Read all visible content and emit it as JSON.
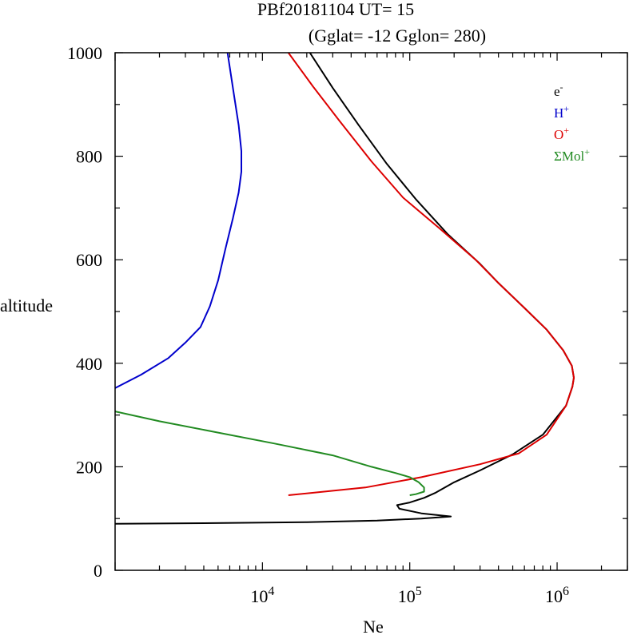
{
  "title_line1": "PBf20181104   UT=  15",
  "title_line2": "(Gglat= -12   Gglon=  280)",
  "chart_data": {
    "type": "line",
    "xlabel": "Ne",
    "ylabel": "altitude",
    "xscale": "log",
    "xlim": [
      1000,
      3000000
    ],
    "ylim": [
      0,
      1000
    ],
    "x_ticks": [
      {
        "value": 10000,
        "base": "10",
        "exp": "4"
      },
      {
        "value": 100000,
        "base": "10",
        "exp": "5"
      },
      {
        "value": 1000000,
        "base": "10",
        "exp": "6"
      }
    ],
    "y_ticks": [
      0,
      200,
      400,
      600,
      800,
      1000
    ],
    "legend_position": "top-right",
    "series": [
      {
        "name": "e-",
        "label_base": "e",
        "label_sup": "-",
        "color": "#000000",
        "points": [
          [
            1000,
            90
          ],
          [
            4000,
            91
          ],
          [
            20000,
            93
          ],
          [
            60000,
            96
          ],
          [
            120000,
            100
          ],
          [
            190000,
            104
          ],
          [
            120000,
            110
          ],
          [
            85000,
            119
          ],
          [
            82000,
            126
          ],
          [
            100000,
            131
          ],
          [
            125000,
            140
          ],
          [
            150000,
            150
          ],
          [
            200000,
            170
          ],
          [
            300000,
            193
          ],
          [
            500000,
            224
          ],
          [
            800000,
            262
          ],
          [
            1150000,
            318
          ],
          [
            1270000,
            355
          ],
          [
            1300000,
            372
          ],
          [
            1260000,
            395
          ],
          [
            1100000,
            425
          ],
          [
            850000,
            465
          ],
          [
            600000,
            507
          ],
          [
            400000,
            555
          ],
          [
            300000,
            592
          ],
          [
            180000,
            650
          ],
          [
            110000,
            717
          ],
          [
            70000,
            785
          ],
          [
            45000,
            860
          ],
          [
            30000,
            932
          ],
          [
            21000,
            1000
          ]
        ]
      },
      {
        "name": "H+",
        "label_base": "H",
        "label_sup": "+",
        "color": "#0000cc",
        "points": [
          [
            1000,
            352
          ],
          [
            1500,
            378
          ],
          [
            2300,
            410
          ],
          [
            3000,
            440
          ],
          [
            3800,
            470
          ],
          [
            4400,
            510
          ],
          [
            5000,
            560
          ],
          [
            5600,
            620
          ],
          [
            6300,
            680
          ],
          [
            6900,
            730
          ],
          [
            7200,
            770
          ],
          [
            7200,
            810
          ],
          [
            6900,
            860
          ],
          [
            6400,
            920
          ],
          [
            5800,
            1000
          ]
        ]
      },
      {
        "name": "O+",
        "label_base": "O",
        "label_sup": "+",
        "color": "#dd0000",
        "points": [
          [
            15000,
            145
          ],
          [
            50000,
            160
          ],
          [
            120000,
            180
          ],
          [
            300000,
            205
          ],
          [
            550000,
            226
          ],
          [
            850000,
            262
          ],
          [
            1150000,
            318
          ],
          [
            1270000,
            355
          ],
          [
            1300000,
            372
          ],
          [
            1260000,
            395
          ],
          [
            1100000,
            425
          ],
          [
            850000,
            465
          ],
          [
            600000,
            507
          ],
          [
            400000,
            555
          ],
          [
            280000,
            600
          ],
          [
            160000,
            660
          ],
          [
            90000,
            720
          ],
          [
            55000,
            790
          ],
          [
            33000,
            870
          ],
          [
            22000,
            935
          ],
          [
            15000,
            1000
          ]
        ]
      },
      {
        "name": "ΣMol+",
        "label_base": "ΣMol",
        "label_sup": "+",
        "color": "#228b22",
        "points": [
          [
            1000,
            307
          ],
          [
            2000,
            288
          ],
          [
            5000,
            266
          ],
          [
            12000,
            245
          ],
          [
            30000,
            222
          ],
          [
            55000,
            200
          ],
          [
            80000,
            188
          ],
          [
            100000,
            180
          ],
          [
            115000,
            170
          ],
          [
            125000,
            160
          ],
          [
            125000,
            152
          ],
          [
            110000,
            147
          ],
          [
            100000,
            145
          ]
        ]
      }
    ]
  }
}
